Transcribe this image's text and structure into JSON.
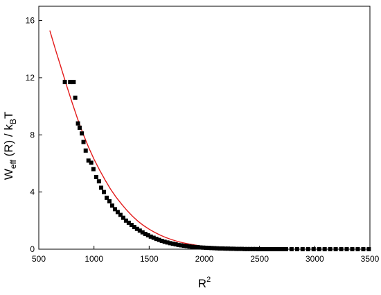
{
  "chart_data": {
    "type": "scatter",
    "title": "",
    "xlabel": {
      "base": "R",
      "sup": "2"
    },
    "ylabel": {
      "part1": "W",
      "sub1": "eff",
      "part2": " (R) / k",
      "sub2": "B",
      "part3": "T"
    },
    "xlim": [
      500,
      3500
    ],
    "ylim": [
      0,
      17
    ],
    "x_ticks": [
      500,
      1000,
      1500,
      2000,
      2500,
      3000,
      3500
    ],
    "y_ticks": [
      0,
      4,
      8,
      12,
      16
    ],
    "grid": false,
    "legend": "none",
    "series": [
      {
        "kind": "points",
        "marker": "square",
        "color": "#000000",
        "x": [
          736,
          784,
          816,
          830,
          855,
          870,
          890,
          905,
          925,
          950,
          975,
          995,
          1020,
          1045,
          1065,
          1090,
          1115,
          1140,
          1165,
          1190,
          1215,
          1240,
          1265,
          1290,
          1315,
          1340,
          1365,
          1390,
          1415,
          1440,
          1465,
          1490,
          1515,
          1540,
          1565,
          1590,
          1615,
          1640,
          1665,
          1690,
          1715,
          1740,
          1765,
          1790,
          1815,
          1840,
          1865,
          1890,
          1915,
          1940,
          1965,
          1990,
          2015,
          2040,
          2065,
          2090,
          2115,
          2140,
          2165,
          2190,
          2215,
          2240,
          2265,
          2290,
          2315,
          2340,
          2365,
          2390,
          2415,
          2440,
          2465,
          2490,
          2515,
          2540,
          2565,
          2590,
          2615,
          2640,
          2665,
          2690,
          2715,
          2740,
          2790,
          2840,
          2890,
          2940,
          2990,
          3040,
          3090,
          3140,
          3190,
          3240,
          3290,
          3340,
          3390,
          3440,
          3490
        ],
        "y": [
          11.7,
          11.7,
          11.7,
          10.6,
          8.8,
          8.5,
          8.1,
          7.5,
          6.9,
          6.2,
          6.05,
          5.6,
          5.05,
          4.75,
          4.3,
          4.0,
          3.6,
          3.35,
          3.05,
          2.8,
          2.6,
          2.4,
          2.2,
          2.0,
          1.85,
          1.7,
          1.55,
          1.42,
          1.3,
          1.18,
          1.07,
          0.97,
          0.88,
          0.8,
          0.72,
          0.65,
          0.58,
          0.52,
          0.47,
          0.42,
          0.38,
          0.34,
          0.3,
          0.27,
          0.24,
          0.22,
          0.19,
          0.17,
          0.15,
          0.14,
          0.12,
          0.11,
          0.1,
          0.09,
          0.08,
          0.07,
          0.06,
          0.05,
          0.05,
          0.04,
          0.04,
          0.03,
          0.03,
          0.02,
          0.02,
          0.02,
          0.01,
          0.01,
          0.01,
          0.01,
          0.01,
          0.0,
          0.0,
          0.0,
          0.0,
          0.0,
          0.0,
          0.0,
          0.0,
          0.0,
          0.0,
          0.0,
          0.0,
          0.0,
          0.0,
          0.0,
          0.0,
          0.0,
          0.0,
          0.0,
          0.0,
          0.0,
          0.0,
          0.0,
          0.0,
          0.0,
          0.0
        ]
      },
      {
        "kind": "line",
        "color": "#e31b1b",
        "x": [
          600,
          650,
          700,
          750,
          800,
          850,
          900,
          950,
          1000,
          1050,
          1100,
          1150,
          1200,
          1250,
          1300,
          1350,
          1400,
          1450,
          1500,
          1550,
          1600,
          1650,
          1700,
          1750,
          1800,
          1850,
          1900,
          1950,
          2000,
          2100,
          2200,
          2300,
          2400,
          2500,
          2600,
          2700,
          2740
        ],
        "y": [
          15.3,
          14.0,
          12.75,
          11.5,
          10.3,
          9.15,
          8.1,
          7.15,
          6.3,
          5.55,
          4.85,
          4.2,
          3.65,
          3.15,
          2.7,
          2.3,
          1.95,
          1.65,
          1.4,
          1.18,
          0.98,
          0.82,
          0.68,
          0.56,
          0.46,
          0.38,
          0.31,
          0.25,
          0.2,
          0.13,
          0.08,
          0.05,
          0.03,
          0.02,
          0.01,
          0.01,
          0.0
        ]
      }
    ]
  }
}
